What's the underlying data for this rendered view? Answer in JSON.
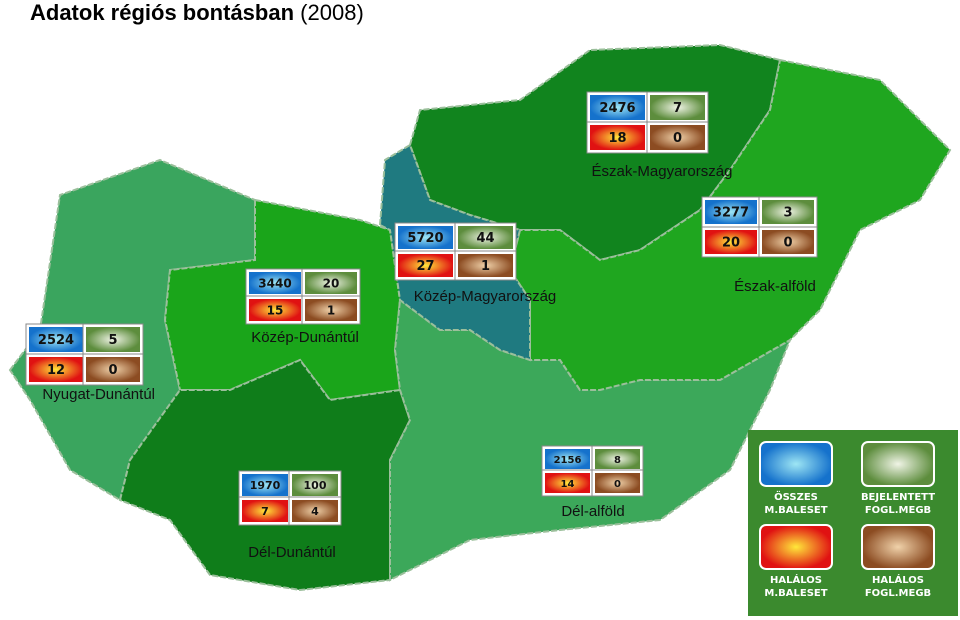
{
  "header": {
    "title": "Adatok régiós bontásban",
    "year": "(2008)"
  },
  "regions": [
    {
      "name": "Észak-Magyarország",
      "osszes": 2476,
      "bejelentett": 7,
      "halalos": 18,
      "halalos_fogl": 0
    },
    {
      "name": "Észak-alföld",
      "osszes": 3277,
      "bejelentett": 3,
      "halalos": 20,
      "halalos_fogl": 0
    },
    {
      "name": "Közép-Magyarország",
      "osszes": 5720,
      "bejelentett": 44,
      "halalos": 27,
      "halalos_fogl": 1
    },
    {
      "name": "Közép-Dunántúl",
      "osszes": 3440,
      "bejelentett": 20,
      "halalos": 15,
      "halalos_fogl": 1
    },
    {
      "name": "Nyugat-Dunántúl",
      "osszes": 2524,
      "bejelentett": 5,
      "halalos": 12,
      "halalos_fogl": 0
    },
    {
      "name": "Dél-Dunántúl",
      "osszes": 1970,
      "bejelentett": 100,
      "halalos": 7,
      "halalos_fogl": 4
    },
    {
      "name": "Dél-alföld",
      "osszes": 2156,
      "bejelentett": 8,
      "halalos": 14,
      "halalos_fogl": 0
    }
  ],
  "legend": [
    {
      "lines": [
        "ÖSSZES",
        "M.BALESET"
      ]
    },
    {
      "lines": [
        "BEJELENTETT",
        "FOGL.MEGB"
      ]
    },
    {
      "lines": [
        "HALÁLOS",
        "M.BALESET"
      ]
    },
    {
      "lines": [
        "HALÁLOS",
        "FOGL.MEGB"
      ]
    }
  ]
}
